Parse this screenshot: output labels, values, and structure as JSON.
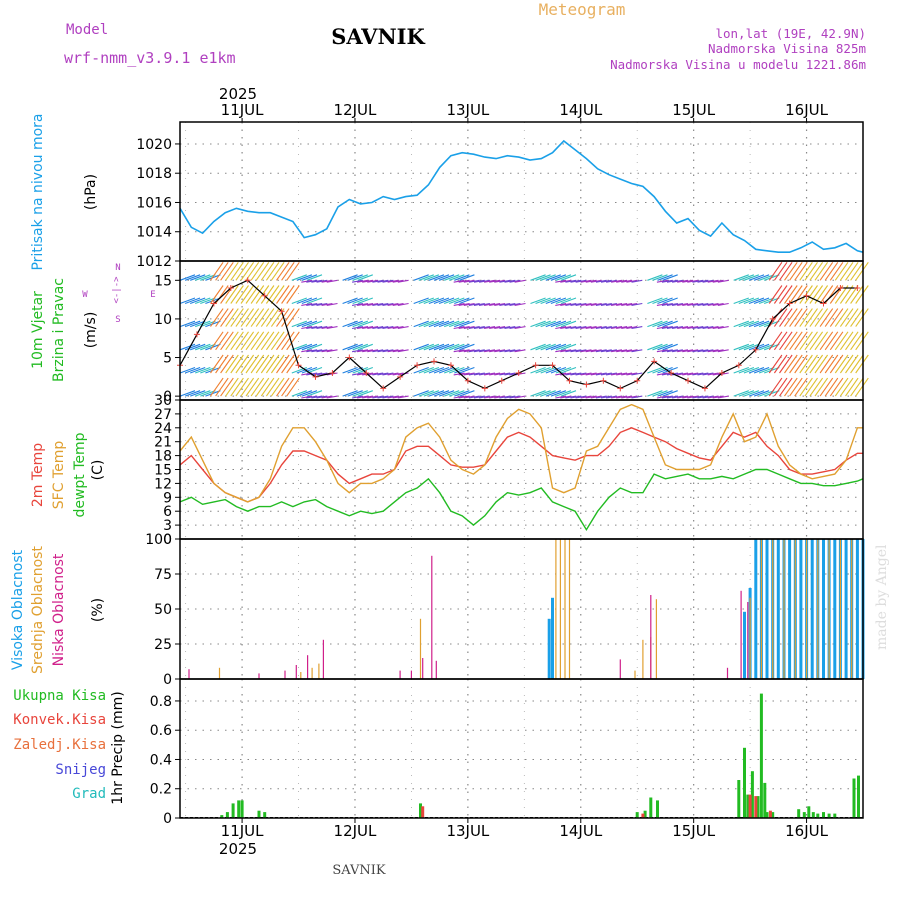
{
  "header": {
    "model_label": "Model",
    "model_name": "wrf-nmm_v3.9.1 e1km",
    "station": "SAVNIK",
    "meteogram_label": "Meteogram",
    "lonlat": "lon,lat (19E, 42.9N)",
    "elevation": "Nadmorska Visina 825m",
    "model_elevation": "Nadmorska Visina u modelu 1221.86m",
    "year": "2025",
    "footer_station": "SAVNIK",
    "watermark": "made by Angel"
  },
  "colors": {
    "pressure": "#1aa0e8",
    "temp2m": "#e8453c",
    "sfc_temp": "#e0a030",
    "dewpt": "#22bb22",
    "high_cloud": "#1aa0e8",
    "mid_cloud": "#e0a030",
    "low_cloud": "#d0208a",
    "total_precip": "#22bb22",
    "conv_precip": "#e8453c",
    "frontal_precip": "#e8703c",
    "snow": "#4848d8",
    "hail": "#22bbbb",
    "wind_axis_label": "#b040c0",
    "grid": "#888888"
  },
  "time_axis": {
    "top_labels": [
      "11JUL",
      "12JUL",
      "13JUL",
      "14JUL",
      "15JUL",
      "16JUL"
    ],
    "bottom_labels": [
      "11JUL",
      "12JUL",
      "13JUL",
      "14JUL",
      "15JUL",
      "16JUL"
    ],
    "start_day": 10.45,
    "end_day": 16.5
  },
  "compass": {
    "n": "N",
    "s": "S",
    "w": "W",
    "e": "E",
    "arrow": "<-|->"
  },
  "chart_data": [
    {
      "type": "line",
      "title": "",
      "ylabel": [
        "Pritisak na nivou mora",
        "(hPa)"
      ],
      "ylim": [
        1012,
        1021.5
      ],
      "yticks": [
        1012,
        1014,
        1016,
        1018,
        1020
      ],
      "series": [
        {
          "name": "Pritisak na nivou mora",
          "x": [
            10.45,
            10.55,
            10.65,
            10.75,
            10.85,
            10.95,
            11.05,
            11.15,
            11.25,
            11.35,
            11.45,
            11.55,
            11.65,
            11.75,
            11.85,
            11.95,
            12.05,
            12.15,
            12.25,
            12.35,
            12.45,
            12.55,
            12.65,
            12.75,
            12.85,
            12.95,
            13.05,
            13.15,
            13.25,
            13.35,
            13.45,
            13.55,
            13.65,
            13.75,
            13.85,
            13.95,
            14.05,
            14.15,
            14.25,
            14.35,
            14.45,
            14.55,
            14.65,
            14.75,
            14.85,
            14.95,
            15.05,
            15.15,
            15.25,
            15.35,
            15.45,
            15.55,
            15.65,
            15.75,
            15.85,
            15.95,
            16.05,
            16.15,
            16.25,
            16.35,
            16.45,
            16.5
          ],
          "values": [
            1015.6,
            1014.3,
            1013.9,
            1014.7,
            1015.3,
            1015.6,
            1015.4,
            1015.3,
            1015.3,
            1015.0,
            1014.7,
            1013.6,
            1013.8,
            1014.2,
            1015.7,
            1016.2,
            1015.9,
            1016.0,
            1016.4,
            1016.2,
            1016.4,
            1016.5,
            1017.2,
            1018.4,
            1019.2,
            1019.4,
            1019.3,
            1019.1,
            1019.0,
            1019.2,
            1019.1,
            1018.9,
            1019.0,
            1019.4,
            1020.2,
            1019.6,
            1019.0,
            1018.3,
            1017.9,
            1017.6,
            1017.3,
            1017.1,
            1016.4,
            1015.4,
            1014.6,
            1014.9,
            1014.1,
            1013.7,
            1014.6,
            1013.8,
            1013.4,
            1012.8,
            1012.7,
            1012.6,
            1012.6,
            1012.9,
            1013.3,
            1012.8,
            1012.9,
            1013.2,
            1012.7,
            1012.6
          ]
        }
      ]
    },
    {
      "type": "scatter",
      "title": "",
      "ylabel": [
        "10m Vjetar",
        "Brzina i Pravac",
        "(m/s)"
      ],
      "ylim": [
        -0.5,
        17.5
      ],
      "yticks": [
        0,
        5,
        10,
        15
      ],
      "series": [
        {
          "name": "Brzina",
          "x": [
            10.45,
            10.6,
            10.75,
            10.9,
            11.05,
            11.2,
            11.35,
            11.5,
            11.65,
            11.8,
            11.95,
            12.1,
            12.25,
            12.4,
            12.55,
            12.7,
            12.85,
            13.0,
            13.15,
            13.3,
            13.45,
            13.6,
            13.75,
            13.9,
            14.05,
            14.2,
            14.35,
            14.5,
            14.65,
            14.8,
            14.95,
            15.1,
            15.25,
            15.4,
            15.55,
            15.7,
            15.85,
            16.0,
            16.15,
            16.3,
            16.45
          ],
          "values": [
            4,
            8,
            12,
            14,
            15,
            13,
            11,
            4,
            2.5,
            3,
            5,
            3,
            1,
            2.5,
            4,
            4.5,
            4,
            2,
            1,
            2,
            3,
            4,
            4,
            2,
            1.5,
            2,
            1,
            2,
            4.5,
            3,
            2,
            1,
            3,
            4,
            6,
            10,
            12,
            13,
            12,
            14,
            14
          ]
        }
      ]
    },
    {
      "type": "line",
      "title": "",
      "ylabel": [
        "2m Temp",
        "SFC Temp",
        "dewpt Temp",
        "(C)"
      ],
      "ylim": [
        0,
        30
      ],
      "yticks": [
        0,
        3,
        6,
        9,
        12,
        15,
        18,
        21,
        24,
        27,
        30
      ],
      "series": [
        {
          "name": "2m Temp",
          "x": [
            10.45,
            10.55,
            10.65,
            10.75,
            10.85,
            10.95,
            11.05,
            11.15,
            11.25,
            11.35,
            11.45,
            11.55,
            11.65,
            11.75,
            11.85,
            11.95,
            12.05,
            12.15,
            12.25,
            12.35,
            12.45,
            12.55,
            12.65,
            12.75,
            12.85,
            12.95,
            13.05,
            13.15,
            13.25,
            13.35,
            13.45,
            13.55,
            13.65,
            13.75,
            13.85,
            13.95,
            14.05,
            14.15,
            14.25,
            14.35,
            14.45,
            14.55,
            14.65,
            14.75,
            14.85,
            14.95,
            15.05,
            15.15,
            15.25,
            15.35,
            15.45,
            15.55,
            15.65,
            15.75,
            15.85,
            15.95,
            16.05,
            16.15,
            16.25,
            16.35,
            16.45,
            16.5
          ],
          "values": [
            16,
            18,
            15,
            12,
            10,
            9,
            8,
            9,
            12,
            16,
            19,
            19,
            18,
            17,
            14,
            12,
            13,
            14,
            14,
            15,
            19,
            20,
            20,
            18,
            16,
            15.5,
            15.5,
            16,
            19,
            22,
            23,
            22,
            20,
            18,
            17.5,
            17,
            18,
            18,
            20,
            23,
            24,
            23,
            22,
            21,
            19.5,
            18.5,
            17.5,
            17,
            20,
            23,
            22,
            23,
            20,
            18,
            15,
            14,
            14,
            14.5,
            15,
            17,
            18.5,
            18.5
          ]
        },
        {
          "name": "SFC Temp",
          "x": [
            10.45,
            10.55,
            10.65,
            10.75,
            10.85,
            10.95,
            11.05,
            11.15,
            11.25,
            11.35,
            11.45,
            11.55,
            11.65,
            11.75,
            11.85,
            11.95,
            12.05,
            12.15,
            12.25,
            12.35,
            12.45,
            12.55,
            12.65,
            12.75,
            12.85,
            12.95,
            13.05,
            13.15,
            13.25,
            13.35,
            13.45,
            13.55,
            13.65,
            13.75,
            13.85,
            13.95,
            14.05,
            14.15,
            14.25,
            14.35,
            14.45,
            14.55,
            14.65,
            14.75,
            14.85,
            14.95,
            15.05,
            15.15,
            15.25,
            15.35,
            15.45,
            15.55,
            15.65,
            15.75,
            15.85,
            15.95,
            16.05,
            16.15,
            16.25,
            16.35,
            16.45,
            16.5
          ],
          "values": [
            19,
            22,
            17,
            12,
            10,
            9,
            8,
            9,
            13,
            20,
            24,
            24,
            21,
            17,
            12,
            10,
            12,
            12,
            13,
            15,
            22,
            24,
            25,
            22,
            17,
            15,
            14,
            16,
            22,
            26,
            28,
            27,
            24,
            11,
            10,
            11,
            19,
            20,
            24,
            28,
            29,
            28,
            22,
            16,
            15,
            15,
            15,
            16,
            22,
            27,
            21,
            22,
            27,
            20,
            16,
            14,
            13,
            13.5,
            14,
            17,
            24,
            24
          ]
        },
        {
          "name": "dewpt Temp",
          "x": [
            10.45,
            10.55,
            10.65,
            10.75,
            10.85,
            10.95,
            11.05,
            11.15,
            11.25,
            11.35,
            11.45,
            11.55,
            11.65,
            11.75,
            11.85,
            11.95,
            12.05,
            12.15,
            12.25,
            12.35,
            12.45,
            12.55,
            12.65,
            12.75,
            12.85,
            12.95,
            13.05,
            13.15,
            13.25,
            13.35,
            13.45,
            13.55,
            13.65,
            13.75,
            13.85,
            13.95,
            14.05,
            14.15,
            14.25,
            14.35,
            14.45,
            14.55,
            14.65,
            14.75,
            14.85,
            14.95,
            15.05,
            15.15,
            15.25,
            15.35,
            15.45,
            15.55,
            15.65,
            15.75,
            15.85,
            15.95,
            16.05,
            16.15,
            16.25,
            16.35,
            16.45,
            16.5
          ],
          "values": [
            8,
            9,
            7.5,
            8,
            8.5,
            7,
            6,
            7,
            7,
            8,
            7,
            8,
            8.5,
            7,
            6,
            5,
            6,
            5.5,
            6,
            8,
            10,
            11,
            13,
            10,
            6,
            5,
            3,
            5,
            8,
            10,
            9.5,
            10,
            11,
            8,
            7,
            6,
            2,
            6,
            9,
            11,
            10,
            10,
            14,
            13,
            13.5,
            14,
            13,
            13,
            13.5,
            13,
            14,
            15,
            15,
            14,
            13,
            12,
            12,
            11.5,
            11.5,
            12,
            12.5,
            13
          ]
        }
      ]
    },
    {
      "type": "bar",
      "title": "",
      "ylabel": [
        "Visoka Oblacnost",
        "Srednja Oblacnost",
        "Niska Oblacnost",
        "(%)"
      ],
      "ylim": [
        0,
        100
      ],
      "yticks": [
        0,
        25,
        50,
        75,
        100
      ],
      "series": [
        {
          "name": "Visoka Oblacnost",
          "x": [
            13.72,
            13.75,
            15.45,
            15.5,
            15.55,
            15.6,
            15.65,
            15.7,
            15.75,
            15.8,
            15.85,
            15.9,
            15.95,
            16.0,
            16.05,
            16.1,
            16.15,
            16.2,
            16.25,
            16.3,
            16.35,
            16.4,
            16.45,
            16.5
          ],
          "values": [
            43,
            58,
            48,
            65,
            100,
            100,
            100,
            100,
            100,
            100,
            100,
            100,
            100,
            100,
            100,
            100,
            100,
            100,
            100,
            100,
            100,
            100,
            100,
            100
          ]
        },
        {
          "name": "Srednja Oblacnost",
          "x": [
            10.8,
            11.52,
            11.62,
            11.68,
            12.58,
            13.78,
            13.82,
            13.86,
            13.9,
            14.48,
            14.55,
            14.62,
            14.67,
            15.5,
            15.6,
            15.7,
            15.8,
            15.9,
            16.0,
            16.1,
            16.2,
            16.3,
            16.4
          ],
          "values": [
            8,
            5,
            8,
            11,
            43,
            100,
            100,
            100,
            100,
            6,
            28,
            30,
            57,
            58,
            100,
            100,
            100,
            100,
            100,
            100,
            100,
            100,
            100
          ]
        },
        {
          "name": "Niska Oblacnost",
          "x": [
            10.53,
            11.15,
            11.38,
            11.48,
            11.58,
            11.72,
            12.4,
            12.5,
            12.6,
            12.68,
            12.72,
            14.35,
            14.62,
            15.3,
            15.42,
            15.48
          ],
          "values": [
            7,
            4,
            6,
            10,
            17,
            28,
            6,
            6,
            15,
            88,
            13,
            14,
            60,
            8,
            63,
            55
          ]
        }
      ]
    },
    {
      "type": "bar",
      "title": "",
      "ylabel": [
        "Ukupna Kisa",
        "Konvek.Kisa",
        "Zaledj.Kisa",
        "Snijeg",
        "Grad",
        "1hr Precip (mm)"
      ],
      "ylim": [
        0,
        0.95
      ],
      "yticks": [
        0,
        0.2,
        0.4,
        0.6,
        0.8
      ],
      "series": [
        {
          "name": "Ukupna Kisa",
          "x": [
            10.82,
            10.87,
            10.92,
            10.97,
            11.0,
            11.15,
            11.2,
            12.58,
            14.5,
            14.57,
            14.62,
            14.68,
            15.4,
            15.45,
            15.48,
            15.52,
            15.57,
            15.6,
            15.63,
            15.65,
            15.7,
            15.93,
            15.98,
            16.02,
            16.06,
            16.1,
            16.15,
            16.2,
            16.25,
            16.42,
            16.46
          ],
          "values": [
            0.02,
            0.04,
            0.1,
            0.12,
            0.12,
            0.05,
            0.04,
            0.1,
            0.04,
            0.05,
            0.14,
            0.12,
            0.26,
            0.48,
            0.16,
            0.32,
            0.15,
            0.85,
            0.24,
            0.04,
            0.04,
            0.06,
            0.04,
            0.08,
            0.04,
            0.03,
            0.04,
            0.03,
            0.03,
            0.27,
            0.29
          ]
        },
        {
          "name": "Konvek.Kisa",
          "x": [
            12.6,
            15.5,
            15.55,
            15.68,
            14.55
          ],
          "values": [
            0.08,
            0.16,
            0.15,
            0.05,
            0.03
          ]
        }
      ]
    }
  ]
}
